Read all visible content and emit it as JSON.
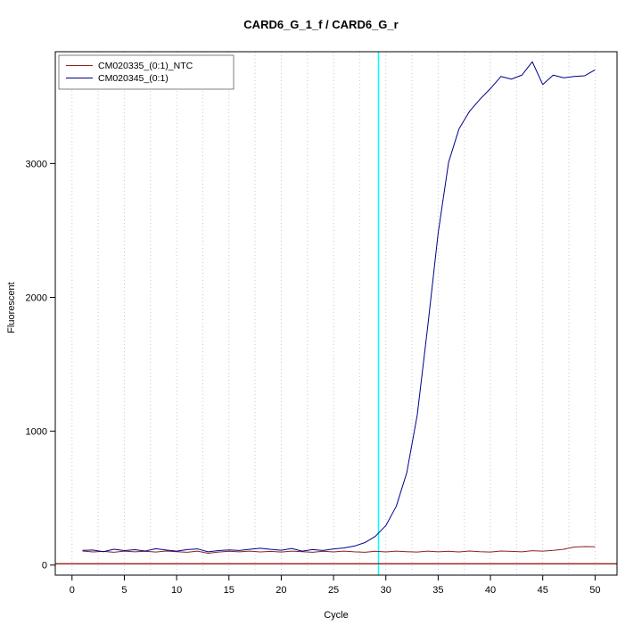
{
  "chart_data": {
    "type": "line",
    "title": "CARD6_G_1_f / CARD6_G_r",
    "xlabel": "Cycle",
    "ylabel": "Fluorescent",
    "x_ticks": [
      0,
      5,
      10,
      15,
      20,
      25,
      30,
      35,
      40,
      45,
      50
    ],
    "y_ticks": [
      0,
      1000,
      2000,
      3000
    ],
    "xlim": [
      -1.6,
      52.1
    ],
    "ylim": [
      -75,
      3835
    ],
    "grid": {
      "vertical_step": 2.5,
      "from": 0,
      "to": 50,
      "color": "#c8c8c8",
      "style": "dotted"
    },
    "threshold_line": {
      "y": 10,
      "color": "#8b0000"
    },
    "ct_line": {
      "x": 29.3,
      "color": "#00ffff"
    },
    "x": [
      1,
      2,
      3,
      4,
      5,
      6,
      7,
      8,
      9,
      10,
      11,
      12,
      13,
      14,
      15,
      16,
      17,
      18,
      19,
      20,
      21,
      22,
      23,
      24,
      25,
      26,
      27,
      28,
      29,
      30,
      31,
      32,
      33,
      34,
      35,
      36,
      37,
      38,
      39,
      40,
      41,
      42,
      43,
      44,
      45,
      46,
      47,
      48,
      49,
      50
    ],
    "series": [
      {
        "name": "CM020335_(0:1)_NTC",
        "color": "#8b2323",
        "values": [
          105,
          98,
          102,
          96,
          104,
          99,
          103,
          97,
          105,
          100,
          96,
          104,
          88,
          97,
          103,
          99,
          104,
          98,
          102,
          97,
          104,
          100,
          96,
          103,
          98,
          104,
          99,
          96,
          103,
          98,
          104,
          100,
          97,
          104,
          99,
          103,
          98,
          105,
          100,
          97,
          105,
          102,
          99,
          107,
          104,
          110,
          118,
          135,
          138,
          137
        ]
      },
      {
        "name": "CM020345_(0:1)",
        "color": "#00008b",
        "values": [
          110,
          112,
          100,
          118,
          108,
          115,
          105,
          122,
          112,
          104,
          116,
          121,
          99,
          108,
          113,
          109,
          118,
          126,
          117,
          111,
          124,
          104,
          116,
          109,
          121,
          128,
          142,
          168,
          215,
          295,
          440,
          690,
          1120,
          1780,
          2480,
          3010,
          3260,
          3390,
          3480,
          3560,
          3650,
          3630,
          3660,
          3760,
          3590,
          3660,
          3640,
          3650,
          3655,
          3700
        ]
      }
    ],
    "legend": {
      "position": "top-left",
      "entries": [
        "CM020335_(0:1)_NTC",
        "CM020345_(0:1)"
      ]
    }
  }
}
